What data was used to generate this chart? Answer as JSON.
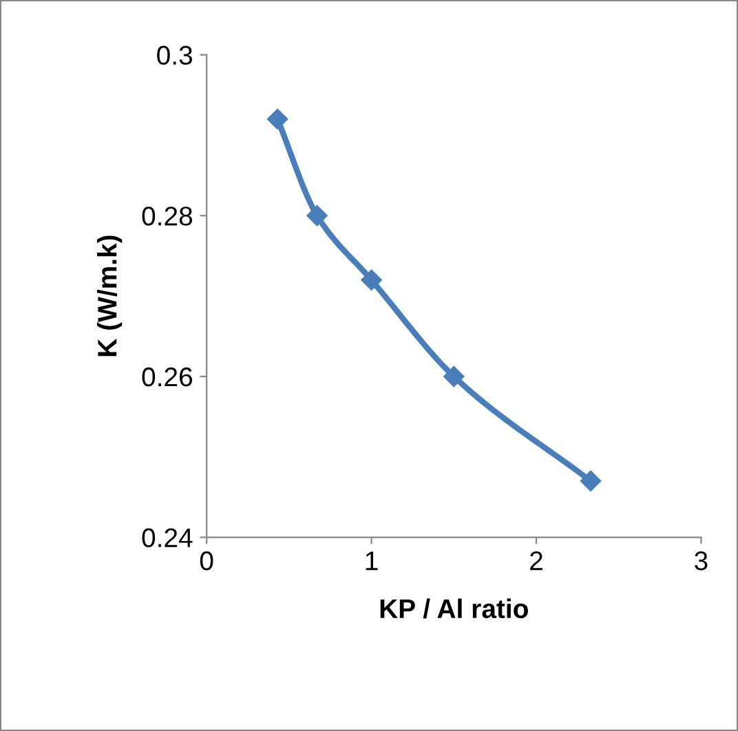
{
  "chart_data": {
    "type": "line",
    "xlabel": "KP / Al ratio",
    "ylabel": "K (W/m.k)",
    "x": [
      0.43,
      0.67,
      1.0,
      1.5,
      2.33
    ],
    "series": [
      {
        "color": "#4a7ebb",
        "values": [
          0.292,
          0.28,
          0.272,
          0.26,
          0.247
        ]
      }
    ],
    "xlim": [
      0,
      3
    ],
    "xticks": [
      0,
      1,
      2,
      3
    ],
    "ylim": [
      0.24,
      0.3
    ],
    "yticks": [
      0.24,
      0.26,
      0.28,
      0.3
    ],
    "marker": "diamond",
    "line_style": "solid",
    "grid": false,
    "legend": false
  }
}
